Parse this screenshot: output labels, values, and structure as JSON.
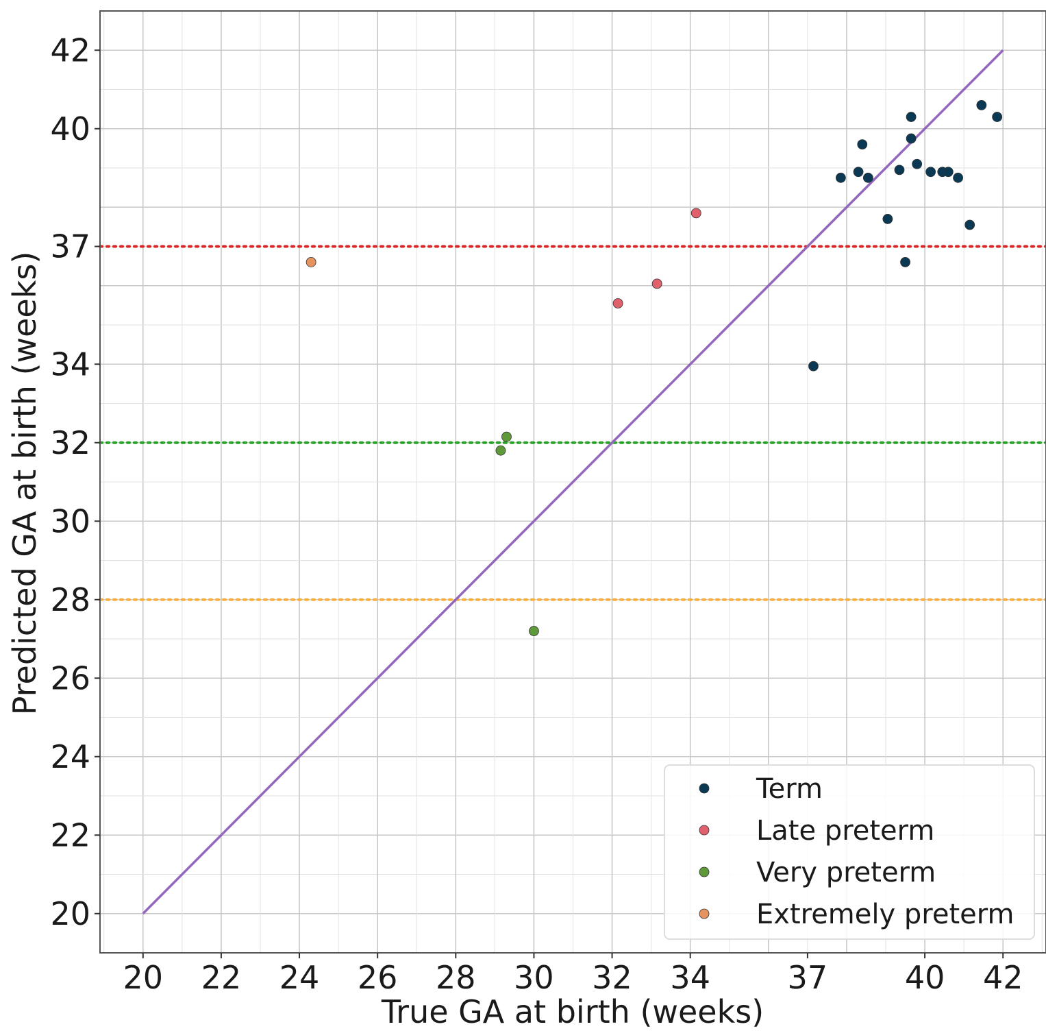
{
  "chart_data": {
    "type": "scatter",
    "title": "",
    "xlabel": "True GA at birth (weeks)",
    "ylabel": "Predicted GA at birth (weeks)",
    "xlim": [
      18.9,
      43.1
    ],
    "ylim": [
      19,
      43
    ],
    "x_ticks": [
      20,
      22,
      24,
      26,
      28,
      30,
      32,
      34,
      37,
      40,
      42
    ],
    "y_ticks": [
      20,
      22,
      24,
      26,
      28,
      30,
      32,
      34,
      37,
      40,
      42
    ],
    "grid": true,
    "legend_position": "bottom-right",
    "reference_line": {
      "x": [
        20,
        42
      ],
      "y": [
        20,
        42
      ],
      "color": "#9467bd"
    },
    "thresholds": [
      {
        "y": 37,
        "color": "#d62728"
      },
      {
        "y": 32,
        "color": "#2ca02c"
      },
      {
        "y": 28,
        "color": "#f5b041"
      }
    ],
    "series": [
      {
        "name": "Term",
        "color": "#0b3954",
        "points": [
          [
            37.15,
            33.95
          ],
          [
            37.85,
            38.75
          ],
          [
            38.3,
            38.9
          ],
          [
            38.4,
            39.6
          ],
          [
            38.55,
            38.75
          ],
          [
            39.05,
            37.7
          ],
          [
            39.35,
            38.95
          ],
          [
            39.5,
            36.6
          ],
          [
            39.65,
            40.3
          ],
          [
            39.65,
            39.75
          ],
          [
            39.8,
            39.1
          ],
          [
            40.15,
            38.9
          ],
          [
            40.45,
            38.9
          ],
          [
            40.6,
            38.9
          ],
          [
            40.85,
            38.75
          ],
          [
            41.15,
            37.55
          ],
          [
            41.45,
            40.6
          ],
          [
            41.85,
            40.3
          ]
        ]
      },
      {
        "name": "Late preterm",
        "color": "#e0616b",
        "points": [
          [
            32.15,
            35.55
          ],
          [
            33.15,
            36.05
          ],
          [
            34.15,
            37.85
          ]
        ]
      },
      {
        "name": "Very preterm",
        "color": "#5e9a3a",
        "points": [
          [
            29.3,
            32.15
          ],
          [
            29.15,
            31.8
          ],
          [
            30.0,
            27.2
          ]
        ]
      },
      {
        "name": "Extremely preterm",
        "color": "#e59460",
        "points": [
          [
            24.3,
            36.6
          ]
        ]
      }
    ]
  }
}
